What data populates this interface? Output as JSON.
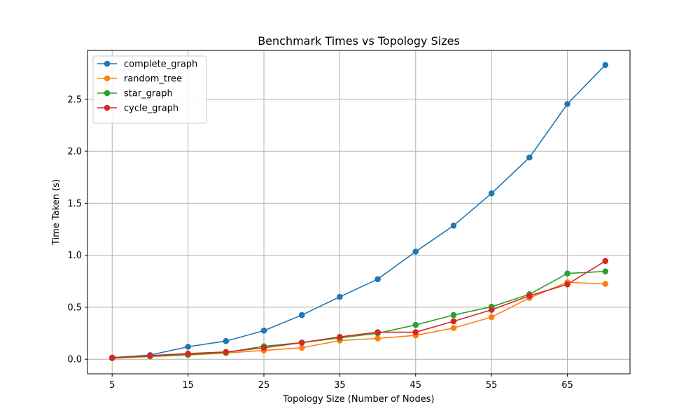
{
  "chart_data": {
    "type": "line",
    "title": "Benchmark Times vs Topology Sizes",
    "xlabel": "Topology Size (Number of Nodes)",
    "ylabel": "Time Taken (s)",
    "xlim": [
      1.75,
      73.25
    ],
    "ylim": [
      -0.14,
      2.97
    ],
    "xticks": [
      5,
      15,
      25,
      35,
      45,
      55,
      65
    ],
    "xtick_labels": [
      "5",
      "15",
      "25",
      "35",
      "45",
      "55",
      "65"
    ],
    "yticks": [
      0.0,
      0.5,
      1.0,
      1.5,
      2.0,
      2.5
    ],
    "ytick_labels": [
      "0.0",
      "0.5",
      "1.0",
      "1.5",
      "2.0",
      "2.5"
    ],
    "grid": true,
    "legend_position": "top-left",
    "x": [
      5,
      10,
      15,
      20,
      25,
      30,
      35,
      40,
      45,
      50,
      55,
      60,
      65,
      70
    ],
    "series": [
      {
        "name": "complete_graph",
        "color": "#1f77b4",
        "values": [
          0.015,
          0.04,
          0.12,
          0.175,
          0.275,
          0.425,
          0.6,
          0.77,
          1.035,
          1.285,
          1.595,
          1.94,
          2.455,
          2.83
        ]
      },
      {
        "name": "random_tree",
        "color": "#ff7f0e",
        "values": [
          0.01,
          0.025,
          0.04,
          0.06,
          0.085,
          0.11,
          0.18,
          0.2,
          0.23,
          0.3,
          0.405,
          0.59,
          0.74,
          0.725
        ]
      },
      {
        "name": "star_graph",
        "color": "#2ca02c",
        "values": [
          0.01,
          0.03,
          0.045,
          0.065,
          0.125,
          0.16,
          0.205,
          0.25,
          0.33,
          0.425,
          0.505,
          0.625,
          0.825,
          0.845
        ]
      },
      {
        "name": "cycle_graph",
        "color": "#d62728",
        "values": [
          0.015,
          0.035,
          0.055,
          0.07,
          0.11,
          0.16,
          0.215,
          0.26,
          0.26,
          0.365,
          0.475,
          0.61,
          0.72,
          0.945
        ]
      }
    ]
  }
}
